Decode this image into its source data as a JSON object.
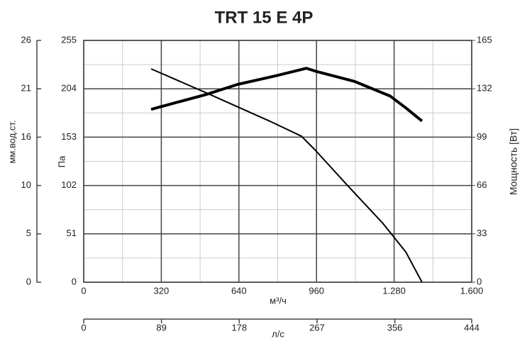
{
  "chart_data": {
    "type": "line",
    "title": "TRT 15 E 4P",
    "xlabel": "м³/ч",
    "ylabel": "Па",
    "y2label": "Мощность [Вт]",
    "xlim": [
      0,
      1600
    ],
    "xticks": [
      0,
      320,
      640,
      960,
      {
        "value": 1280,
        "label": "1.280"
      },
      {
        "value": 1600,
        "label": "1.600"
      }
    ],
    "ylim": [
      0,
      255
    ],
    "yticks": [
      0,
      51,
      102,
      153,
      204,
      255
    ],
    "y2lim": [
      0,
      165
    ],
    "y2ticks": [
      0,
      33,
      66,
      99,
      132,
      165
    ],
    "grid": true,
    "mm_axis": {
      "label": "мм.вод.ст.",
      "ylim": [
        0,
        26
      ],
      "ticks": [
        0,
        {
          "value": 5.2,
          "label": "5"
        },
        {
          "value": 10.4,
          "label": "10"
        },
        {
          "value": 15.6,
          "label": "16"
        },
        {
          "value": 20.8,
          "label": "21"
        },
        26
      ]
    },
    "flow_axis": {
      "label": "л/с",
      "xlim": [
        0,
        444
      ],
      "ticks": [
        0,
        89,
        178,
        267,
        356,
        444
      ]
    },
    "series": [
      {
        "color": "#000000",
        "x": [
          278,
          503,
          766,
          898,
          956,
          1088,
          1234,
          1328,
          1395
        ],
        "values": [
          225,
          200,
          170,
          154,
          139,
          102,
          62,
          32,
          0
        ]
      },
      {
        "color": "#000000",
        "axis": "y2",
        "x": [
          278,
          503,
          635,
          796,
          918,
          956,
          1117,
          1264,
          1328,
          1395
        ],
        "values": [
          118,
          128,
          135,
          141,
          146,
          144,
          137,
          127,
          119,
          110
        ]
      }
    ]
  }
}
